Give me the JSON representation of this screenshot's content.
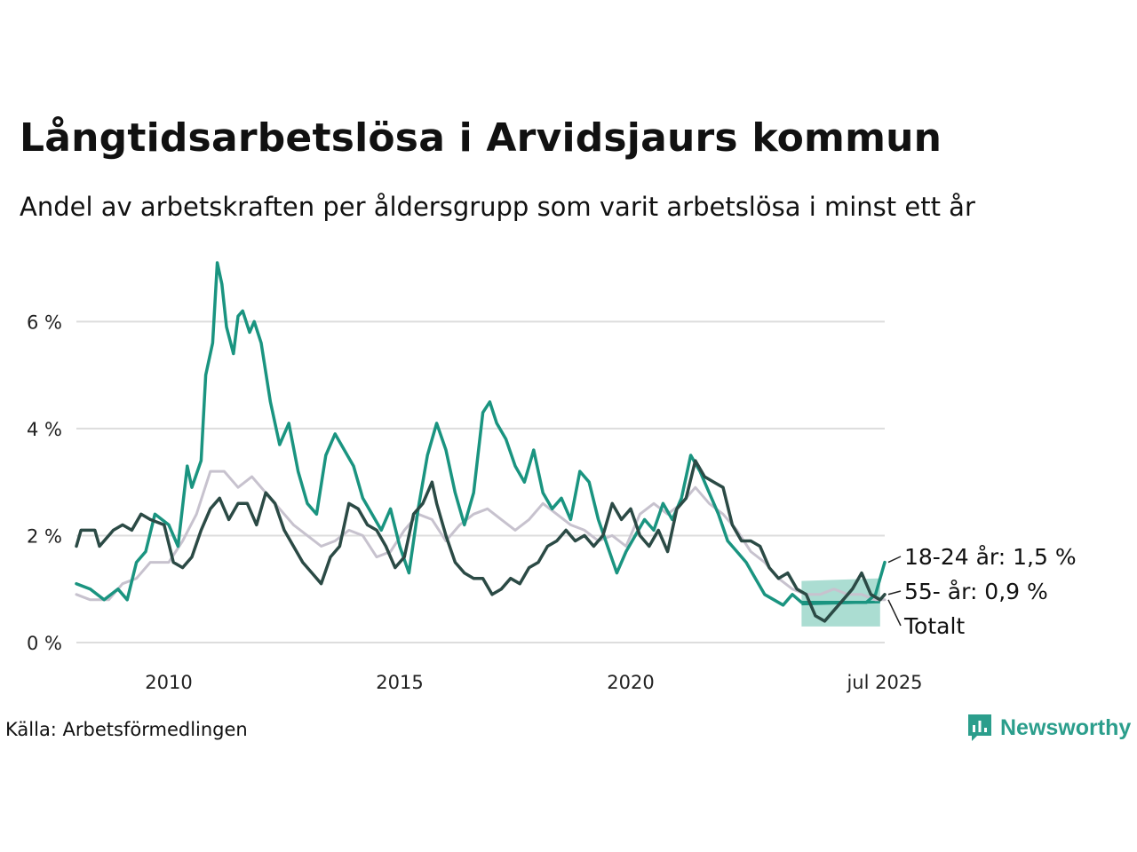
{
  "header": {
    "title": "Långtidsarbetslösa i Arvidsjaurs kommun",
    "subtitle": "Andel av arbetskraften per åldersgrupp som varit arbetslösa i minst ett år"
  },
  "footer": {
    "source": "Källa: Arbetsförmedlingen",
    "brand": "Newsworthy",
    "brand_icon": "newsworthy-logo-icon"
  },
  "colors": {
    "youth": "#1a9480",
    "senior": "#2b4a45",
    "total": "#c7c2ce",
    "band": "#8fd1c3",
    "grid": "#dddddd"
  },
  "chart_data": {
    "type": "line",
    "title": "Långtidsarbetslösa i Arvidsjaurs kommun",
    "subtitle": "Andel av arbetskraften per åldersgrupp som varit arbetslösa i minst ett år",
    "xlabel": "",
    "ylabel": "",
    "x_range": [
      2008.0,
      2025.5
    ],
    "ylim": [
      0,
      7.2
    ],
    "y_ticks": [
      {
        "value": 0,
        "label": "0 %"
      },
      {
        "value": 2,
        "label": "2 %"
      },
      {
        "value": 4,
        "label": "4 %"
      },
      {
        "value": 6,
        "label": "6 %"
      }
    ],
    "x_ticks": [
      {
        "value": 2010,
        "label": "2010"
      },
      {
        "value": 2015,
        "label": "2015"
      },
      {
        "value": 2020,
        "label": "2020"
      },
      {
        "value": 2025.5,
        "label": "jul 2025"
      }
    ],
    "grid": "horizontal",
    "series": [
      {
        "name": "Totalt",
        "end_label": "Totalt",
        "color": "#c7c2ce",
        "points": [
          [
            2008.0,
            0.9
          ],
          [
            2008.3,
            0.8
          ],
          [
            2008.7,
            0.8
          ],
          [
            2009.0,
            1.1
          ],
          [
            2009.3,
            1.2
          ],
          [
            2009.6,
            1.5
          ],
          [
            2010.0,
            1.5
          ],
          [
            2010.3,
            1.9
          ],
          [
            2010.6,
            2.4
          ],
          [
            2010.9,
            3.2
          ],
          [
            2011.2,
            3.2
          ],
          [
            2011.5,
            2.9
          ],
          [
            2011.8,
            3.1
          ],
          [
            2012.1,
            2.8
          ],
          [
            2012.4,
            2.5
          ],
          [
            2012.7,
            2.2
          ],
          [
            2013.0,
            2.0
          ],
          [
            2013.3,
            1.8
          ],
          [
            2013.6,
            1.9
          ],
          [
            2013.9,
            2.1
          ],
          [
            2014.2,
            2.0
          ],
          [
            2014.5,
            1.6
          ],
          [
            2014.8,
            1.7
          ],
          [
            2015.1,
            2.1
          ],
          [
            2015.4,
            2.4
          ],
          [
            2015.7,
            2.3
          ],
          [
            2016.0,
            1.9
          ],
          [
            2016.3,
            2.2
          ],
          [
            2016.6,
            2.4
          ],
          [
            2016.9,
            2.5
          ],
          [
            2017.2,
            2.3
          ],
          [
            2017.5,
            2.1
          ],
          [
            2017.8,
            2.3
          ],
          [
            2018.1,
            2.6
          ],
          [
            2018.4,
            2.4
          ],
          [
            2018.7,
            2.2
          ],
          [
            2019.0,
            2.1
          ],
          [
            2019.3,
            1.9
          ],
          [
            2019.6,
            2.0
          ],
          [
            2019.9,
            1.8
          ],
          [
            2020.2,
            2.4
          ],
          [
            2020.5,
            2.6
          ],
          [
            2020.8,
            2.4
          ],
          [
            2021.1,
            2.6
          ],
          [
            2021.4,
            2.9
          ],
          [
            2021.7,
            2.6
          ],
          [
            2022.0,
            2.4
          ],
          [
            2022.3,
            2.1
          ],
          [
            2022.6,
            1.7
          ],
          [
            2022.9,
            1.5
          ],
          [
            2023.2,
            1.2
          ],
          [
            2023.5,
            1.0
          ],
          [
            2023.8,
            0.9
          ],
          [
            2024.1,
            0.9
          ],
          [
            2024.4,
            1.0
          ],
          [
            2024.7,
            0.9
          ],
          [
            2025.0,
            0.9
          ],
          [
            2025.3,
            0.8
          ],
          [
            2025.5,
            0.8
          ]
        ]
      },
      {
        "name": "18-24 år",
        "end_label": "18-24 år: 1,5 %",
        "color": "#1a9480",
        "points": [
          [
            2008.0,
            1.1
          ],
          [
            2008.3,
            1.0
          ],
          [
            2008.6,
            0.8
          ],
          [
            2008.9,
            1.0
          ],
          [
            2009.1,
            0.8
          ],
          [
            2009.3,
            1.5
          ],
          [
            2009.5,
            1.7
          ],
          [
            2009.7,
            2.4
          ],
          [
            2010.0,
            2.2
          ],
          [
            2010.2,
            1.8
          ],
          [
            2010.4,
            3.3
          ],
          [
            2010.5,
            2.9
          ],
          [
            2010.7,
            3.4
          ],
          [
            2010.8,
            5.0
          ],
          [
            2010.95,
            5.6
          ],
          [
            2011.05,
            7.1
          ],
          [
            2011.15,
            6.7
          ],
          [
            2011.25,
            5.9
          ],
          [
            2011.4,
            5.4
          ],
          [
            2011.5,
            6.1
          ],
          [
            2011.6,
            6.2
          ],
          [
            2011.75,
            5.8
          ],
          [
            2011.85,
            6.0
          ],
          [
            2012.0,
            5.6
          ],
          [
            2012.2,
            4.5
          ],
          [
            2012.4,
            3.7
          ],
          [
            2012.6,
            4.1
          ],
          [
            2012.8,
            3.2
          ],
          [
            2013.0,
            2.6
          ],
          [
            2013.2,
            2.4
          ],
          [
            2013.4,
            3.5
          ],
          [
            2013.6,
            3.9
          ],
          [
            2013.8,
            3.6
          ],
          [
            2014.0,
            3.3
          ],
          [
            2014.2,
            2.7
          ],
          [
            2014.4,
            2.4
          ],
          [
            2014.6,
            2.1
          ],
          [
            2014.8,
            2.5
          ],
          [
            2015.0,
            1.8
          ],
          [
            2015.2,
            1.3
          ],
          [
            2015.4,
            2.5
          ],
          [
            2015.6,
            3.5
          ],
          [
            2015.8,
            4.1
          ],
          [
            2016.0,
            3.6
          ],
          [
            2016.2,
            2.8
          ],
          [
            2016.4,
            2.2
          ],
          [
            2016.6,
            2.8
          ],
          [
            2016.8,
            4.3
          ],
          [
            2016.95,
            4.5
          ],
          [
            2017.1,
            4.1
          ],
          [
            2017.3,
            3.8
          ],
          [
            2017.5,
            3.3
          ],
          [
            2017.7,
            3.0
          ],
          [
            2017.9,
            3.6
          ],
          [
            2018.1,
            2.8
          ],
          [
            2018.3,
            2.5
          ],
          [
            2018.5,
            2.7
          ],
          [
            2018.7,
            2.3
          ],
          [
            2018.9,
            3.2
          ],
          [
            2019.1,
            3.0
          ],
          [
            2019.3,
            2.3
          ],
          [
            2019.5,
            1.8
          ],
          [
            2019.7,
            1.3
          ],
          [
            2019.9,
            1.7
          ],
          [
            2020.1,
            2.0
          ],
          [
            2020.3,
            2.3
          ],
          [
            2020.5,
            2.1
          ],
          [
            2020.7,
            2.6
          ],
          [
            2020.9,
            2.3
          ],
          [
            2021.1,
            2.7
          ],
          [
            2021.3,
            3.5
          ],
          [
            2021.5,
            3.2
          ],
          [
            2021.7,
            2.8
          ],
          [
            2021.9,
            2.4
          ],
          [
            2022.1,
            1.9
          ],
          [
            2022.3,
            1.7
          ],
          [
            2022.5,
            1.5
          ],
          [
            2022.7,
            1.2
          ],
          [
            2022.9,
            0.9
          ],
          [
            2023.1,
            0.8
          ],
          [
            2023.3,
            0.7
          ],
          [
            2023.5,
            0.9
          ],
          [
            2023.7,
            0.75
          ],
          [
            2023.9,
            0.75
          ],
          [
            2024.2,
            0.75
          ],
          [
            2024.5,
            0.75
          ],
          [
            2024.8,
            0.75
          ],
          [
            2025.1,
            0.75
          ],
          [
            2025.3,
            0.9
          ],
          [
            2025.5,
            1.5
          ]
        ]
      },
      {
        "name": "55- år",
        "end_label": "55- år: 0,9 %",
        "color": "#2b4a45",
        "points": [
          [
            2008.0,
            1.8
          ],
          [
            2008.1,
            2.1
          ],
          [
            2008.4,
            2.1
          ],
          [
            2008.5,
            1.8
          ],
          [
            2008.8,
            2.1
          ],
          [
            2009.0,
            2.2
          ],
          [
            2009.2,
            2.1
          ],
          [
            2009.4,
            2.4
          ],
          [
            2009.6,
            2.3
          ],
          [
            2009.9,
            2.2
          ],
          [
            2010.1,
            1.5
          ],
          [
            2010.3,
            1.4
          ],
          [
            2010.5,
            1.6
          ],
          [
            2010.7,
            2.1
          ],
          [
            2010.9,
            2.5
          ],
          [
            2011.1,
            2.7
          ],
          [
            2011.3,
            2.3
          ],
          [
            2011.5,
            2.6
          ],
          [
            2011.7,
            2.6
          ],
          [
            2011.9,
            2.2
          ],
          [
            2012.1,
            2.8
          ],
          [
            2012.3,
            2.6
          ],
          [
            2012.5,
            2.1
          ],
          [
            2012.7,
            1.8
          ],
          [
            2012.9,
            1.5
          ],
          [
            2013.1,
            1.3
          ],
          [
            2013.3,
            1.1
          ],
          [
            2013.5,
            1.6
          ],
          [
            2013.7,
            1.8
          ],
          [
            2013.9,
            2.6
          ],
          [
            2014.1,
            2.5
          ],
          [
            2014.3,
            2.2
          ],
          [
            2014.5,
            2.1
          ],
          [
            2014.7,
            1.8
          ],
          [
            2014.9,
            1.4
          ],
          [
            2015.1,
            1.6
          ],
          [
            2015.3,
            2.4
          ],
          [
            2015.5,
            2.6
          ],
          [
            2015.7,
            3.0
          ],
          [
            2015.8,
            2.6
          ],
          [
            2016.0,
            2.0
          ],
          [
            2016.2,
            1.5
          ],
          [
            2016.4,
            1.3
          ],
          [
            2016.6,
            1.2
          ],
          [
            2016.8,
            1.2
          ],
          [
            2017.0,
            0.9
          ],
          [
            2017.2,
            1.0
          ],
          [
            2017.4,
            1.2
          ],
          [
            2017.6,
            1.1
          ],
          [
            2017.8,
            1.4
          ],
          [
            2018.0,
            1.5
          ],
          [
            2018.2,
            1.8
          ],
          [
            2018.4,
            1.9
          ],
          [
            2018.6,
            2.1
          ],
          [
            2018.8,
            1.9
          ],
          [
            2019.0,
            2.0
          ],
          [
            2019.2,
            1.8
          ],
          [
            2019.4,
            2.0
          ],
          [
            2019.6,
            2.6
          ],
          [
            2019.8,
            2.3
          ],
          [
            2020.0,
            2.5
          ],
          [
            2020.2,
            2.0
          ],
          [
            2020.4,
            1.8
          ],
          [
            2020.6,
            2.1
          ],
          [
            2020.8,
            1.7
          ],
          [
            2021.0,
            2.5
          ],
          [
            2021.2,
            2.7
          ],
          [
            2021.4,
            3.4
          ],
          [
            2021.6,
            3.1
          ],
          [
            2021.8,
            3.0
          ],
          [
            2022.0,
            2.9
          ],
          [
            2022.2,
            2.2
          ],
          [
            2022.4,
            1.9
          ],
          [
            2022.6,
            1.9
          ],
          [
            2022.8,
            1.8
          ],
          [
            2023.0,
            1.4
          ],
          [
            2023.2,
            1.2
          ],
          [
            2023.4,
            1.3
          ],
          [
            2023.6,
            1.0
          ],
          [
            2023.8,
            0.9
          ],
          [
            2024.0,
            0.5
          ],
          [
            2024.2,
            0.4
          ],
          [
            2024.4,
            0.6
          ],
          [
            2024.6,
            0.8
          ],
          [
            2024.8,
            1.0
          ],
          [
            2025.0,
            1.3
          ],
          [
            2025.2,
            0.9
          ],
          [
            2025.4,
            0.8
          ],
          [
            2025.5,
            0.9
          ]
        ]
      }
    ],
    "band": {
      "x": [
        2023.7,
        2025.4
      ],
      "upper": [
        1.15,
        1.2
      ],
      "lower": [
        0.3,
        0.3
      ],
      "mid": [
        0.72,
        0.76
      ]
    }
  }
}
